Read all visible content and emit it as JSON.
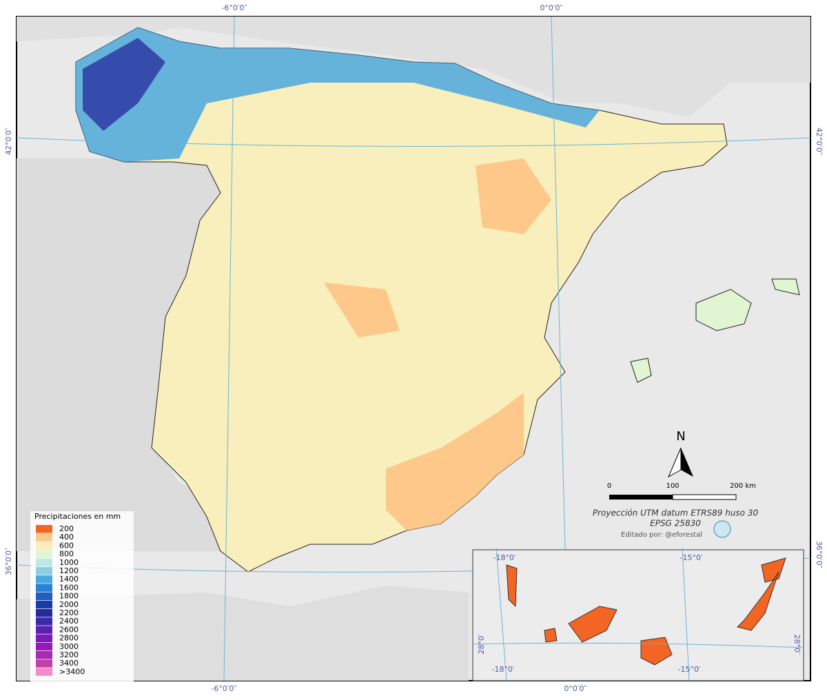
{
  "graticule": {
    "top": [
      "-6°0′0″",
      "0°0′0″"
    ],
    "bottom": [
      "-6°0′0″",
      "0°0′0″"
    ],
    "left": [
      "42°0′0″",
      "36°0′0″"
    ],
    "right": [
      "42°0′0″",
      "36°0′0″"
    ]
  },
  "legend": {
    "title": "Precipitaciones en mm",
    "items": [
      {
        "label": "200",
        "color": "#f26522"
      },
      {
        "label": "400",
        "color": "#fdc88a"
      },
      {
        "label": "600",
        "color": "#fbeebc"
      },
      {
        "label": "800",
        "color": "#e2f5d2"
      },
      {
        "label": "1000",
        "color": "#bfe7e3"
      },
      {
        "label": "1200",
        "color": "#8acfe6"
      },
      {
        "label": "1400",
        "color": "#4ba8e0"
      },
      {
        "label": "1600",
        "color": "#2a82d6"
      },
      {
        "label": "1800",
        "color": "#1f5fc4"
      },
      {
        "label": "2000",
        "color": "#1a3aa8"
      },
      {
        "label": "2200",
        "color": "#262a9e"
      },
      {
        "label": "2400",
        "color": "#3a2aa8"
      },
      {
        "label": "2600",
        "color": "#5a22b0"
      },
      {
        "label": "2800",
        "color": "#7a1ab8"
      },
      {
        "label": "3000",
        "color": "#961aba"
      },
      {
        "label": "3200",
        "color": "#a82ab0"
      },
      {
        "label": "3400",
        "color": "#c040a8"
      },
      {
        "label": ">3400",
        "color": "#f28cc8"
      }
    ]
  },
  "north_arrow": "N",
  "scale_bar": [
    "0",
    "100",
    "200 km"
  ],
  "projection": "Proyección UTM datum ETRS89 huso 30",
  "epsg": "EPSG 25830",
  "credit": "Editado por: @eforestal",
  "inset": {
    "top": [
      "-18°0′",
      "-15°0′"
    ],
    "bottom": [
      "-18°0′",
      "-15°0′"
    ],
    "left": [
      "28°0′"
    ],
    "right": [
      "28°0′"
    ]
  }
}
